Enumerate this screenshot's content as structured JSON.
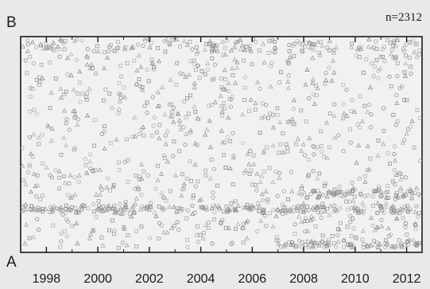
{
  "chart_data": {
    "type": "scatter",
    "title": "",
    "xlabel": "",
    "ylabel": "",
    "annotation": "n=2312",
    "y_axis_top_label": "B",
    "y_axis_bottom_label": "A",
    "x_tick_labels": [
      "1998",
      "2000",
      "2002",
      "2004",
      "2006",
      "2008",
      "2010",
      "2012"
    ],
    "x_ticks": [
      1998,
      2000,
      2002,
      2004,
      2006,
      2008,
      2010,
      2012
    ],
    "xlim": [
      1997.0,
      2012.6
    ],
    "ylim": [
      0,
      1
    ],
    "markers": [
      "triangle",
      "square",
      "circle"
    ],
    "grid": false,
    "legend": "none",
    "colors": {
      "marker": "#8a8a8a",
      "axis": "#1a1a1a",
      "background": "#f1f1ef"
    },
    "dense_bands": [
      {
        "name": "",
        "x_range": [
          1997.0,
          2012.6
        ],
        "y": 0.2
      },
      {
        "name": "",
        "x_range": [
          2007.8,
          2012.6
        ],
        "y": 0.27
      },
      {
        "name": "",
        "x_range": [
          2007.0,
          2012.6
        ],
        "y": 0.04
      }
    ]
  }
}
